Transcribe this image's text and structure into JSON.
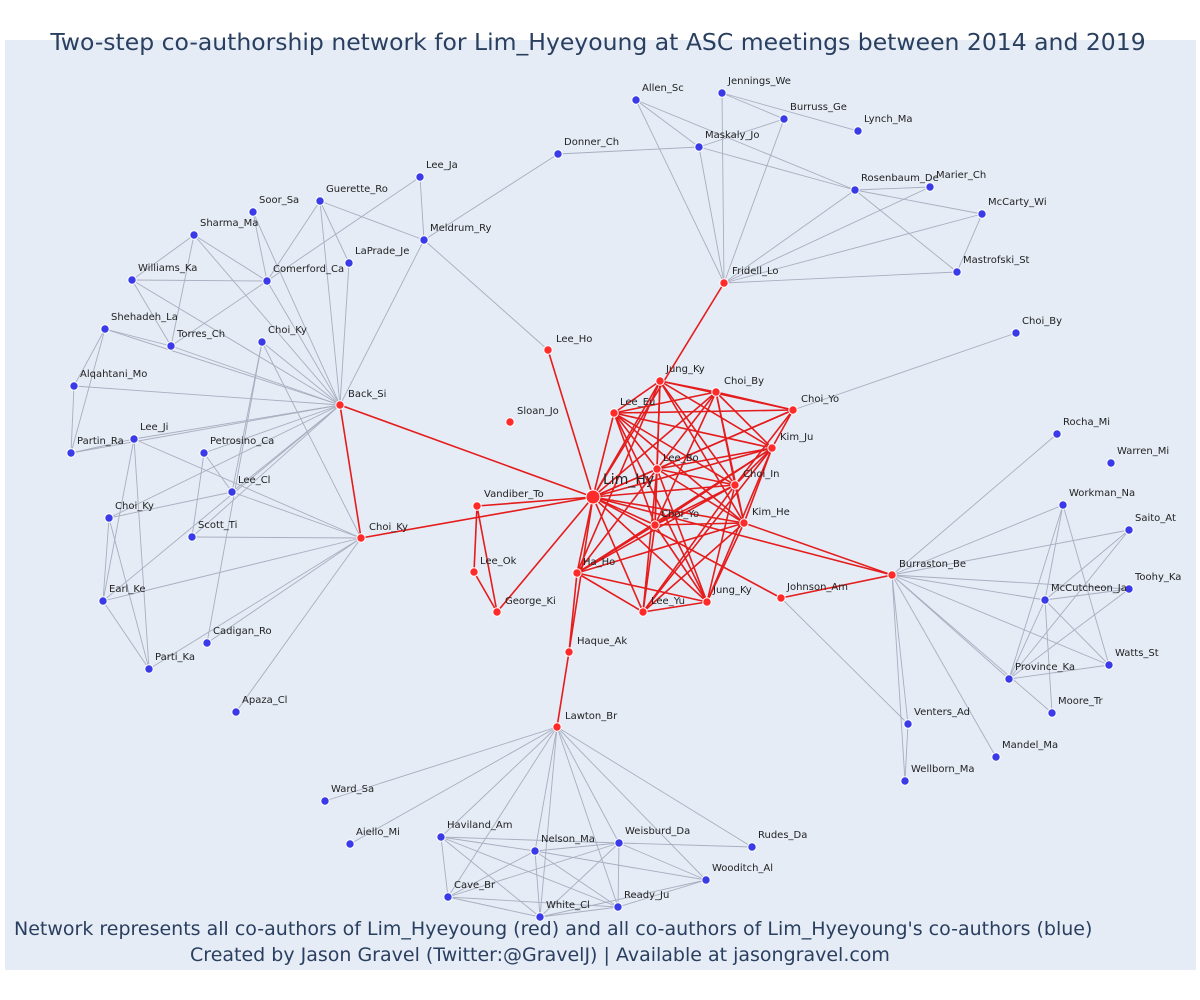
{
  "title": "Two-step co-authorship network for Lim_Hyeyoung at ASC meetings between 2014 and 2019",
  "caption_line1": "Network represents all co-authors of Lim_Hyeyoung (red) and all co-authors of Lim_Hyeyoung's co-authors (blue)",
  "caption_line2": "Created by Jason Gravel (Twitter:@GravelJ) | Available at jasongravel.com",
  "colors": {
    "background": "#e5ecf6",
    "coauthor": "#ff2a2a",
    "second_step": "#3a3ae8",
    "coauthor_edge": "#e51c1c",
    "second_edge": "#a8aebf",
    "text": "#2a3f5f"
  },
  "nodes": [
    {
      "id": "Lim_Hy",
      "label": "Lim_Hy",
      "group": "center"
    },
    {
      "id": "Jung_Ky1",
      "label": "Jung_Ky",
      "group": "coauthor"
    },
    {
      "id": "Choi_By1",
      "label": "Choi_By",
      "group": "coauthor"
    },
    {
      "id": "Choi_Yo",
      "label": "Choi_Yo",
      "group": "coauthor"
    },
    {
      "id": "Lee_Eu",
      "label": "Lee_Eu",
      "group": "coauthor"
    },
    {
      "id": "Kim_Ju",
      "label": "Kim_Ju",
      "group": "coauthor"
    },
    {
      "id": "Lee_Bo",
      "label": "Lee_Bo",
      "group": "coauthor"
    },
    {
      "id": "Choi_In",
      "label": "Choi_In",
      "group": "coauthor"
    },
    {
      "id": "Kim_He",
      "label": "Kim_He",
      "group": "coauthor"
    },
    {
      "id": "Choi_Yo2",
      "label": "Choi_Yo",
      "group": "coauthor"
    },
    {
      "id": "Ha_Ho",
      "label": "Ha_Ho",
      "group": "coauthor"
    },
    {
      "id": "Lee_Yu",
      "label": "Lee_Yu",
      "group": "coauthor"
    },
    {
      "id": "Jung_Ky2",
      "label": "Jung_Ky",
      "group": "coauthor"
    },
    {
      "id": "Johnson_Am",
      "label": "Johnson_Am",
      "group": "coauthor"
    },
    {
      "id": "Haque_Ak",
      "label": "Haque_Ak",
      "group": "coauthor"
    },
    {
      "id": "Lawton_Br",
      "label": "Lawton_Br",
      "group": "coauthor"
    },
    {
      "id": "Vandiber_To",
      "label": "Vandiber_To",
      "group": "coauthor"
    },
    {
      "id": "Lee_Ok",
      "label": "Lee_Ok",
      "group": "coauthor"
    },
    {
      "id": "George_Ki",
      "label": "George_Ki",
      "group": "coauthor"
    },
    {
      "id": "Sloan_Jo",
      "label": "Sloan_Jo",
      "group": "coauthor"
    },
    {
      "id": "Lee_Ho",
      "label": "Lee_Ho",
      "group": "coauthor"
    },
    {
      "id": "Fridell_Lo",
      "label": "Fridell_Lo",
      "group": "coauthor"
    },
    {
      "id": "Back_Si",
      "label": "Back_Si",
      "group": "coauthor"
    },
    {
      "id": "Choi_Ky_r",
      "label": "Choi_Ky",
      "group": "coauthor"
    },
    {
      "id": "Burraston_Be",
      "label": "Burraston_Be",
      "group": "coauthor"
    },
    {
      "id": "Allen_Sc",
      "label": "Allen_Sc",
      "group": "second"
    },
    {
      "id": "Jennings_We",
      "label": "Jennings_We",
      "group": "second"
    },
    {
      "id": "Burruss_Ge",
      "label": "Burruss_Ge",
      "group": "second"
    },
    {
      "id": "Lynch_Ma",
      "label": "Lynch_Ma",
      "group": "second"
    },
    {
      "id": "Donner_Ch",
      "label": "Donner_Ch",
      "group": "second"
    },
    {
      "id": "Maskaly_Jo",
      "label": "Maskaly_Jo",
      "group": "second"
    },
    {
      "id": "Rosenbaum_De",
      "label": "Rosenbaum_De",
      "group": "second"
    },
    {
      "id": "Marier_Ch",
      "label": "Marier_Ch",
      "group": "second"
    },
    {
      "id": "McCarty_Wi",
      "label": "McCarty_Wi",
      "group": "second"
    },
    {
      "id": "Mastrofski_St",
      "label": "Mastrofski_St",
      "group": "second"
    },
    {
      "id": "Lee_Ja",
      "label": "Lee_Ja",
      "group": "second"
    },
    {
      "id": "Guerette_Ro",
      "label": "Guerette_Ro",
      "group": "second"
    },
    {
      "id": "Soor_Sa",
      "label": "Soor_Sa",
      "group": "second"
    },
    {
      "id": "Sharma_Ma",
      "label": "Sharma_Ma",
      "group": "second"
    },
    {
      "id": "Meldrum_Ry",
      "label": "Meldrum_Ry",
      "group": "second"
    },
    {
      "id": "LaPrade_Je",
      "label": "LaPrade_Je",
      "group": "second"
    },
    {
      "id": "Williams_Ka",
      "label": "Williams_Ka",
      "group": "second"
    },
    {
      "id": "Comerford_Ca",
      "label": "Comerford_Ca",
      "group": "second"
    },
    {
      "id": "Shehadeh_La",
      "label": "Shehadeh_La",
      "group": "second"
    },
    {
      "id": "Torres_Ch",
      "label": "Torres_Ch",
      "group": "second"
    },
    {
      "id": "Choi_Ky_b1",
      "label": "Choi_Ky",
      "group": "second"
    },
    {
      "id": "Alqahtani_Mo",
      "label": "Alqahtani_Mo",
      "group": "second"
    },
    {
      "id": "Lee_Ji",
      "label": "Lee_Ji",
      "group": "second"
    },
    {
      "id": "Partin_Ra",
      "label": "Partin_Ra",
      "group": "second"
    },
    {
      "id": "Petrosino_Ca",
      "label": "Petrosino_Ca",
      "group": "second"
    },
    {
      "id": "Lee_Cl",
      "label": "Lee_Cl",
      "group": "second"
    },
    {
      "id": "Choi_Ky_b2",
      "label": "Choi_Ky",
      "group": "second"
    },
    {
      "id": "Scott_Ti",
      "label": "Scott_Ti",
      "group": "second"
    },
    {
      "id": "Earl_Ke",
      "label": "Earl_Ke",
      "group": "second"
    },
    {
      "id": "Cadigan_Ro",
      "label": "Cadigan_Ro",
      "group": "second"
    },
    {
      "id": "Parti_Ka",
      "label": "Parti_Ka",
      "group": "second"
    },
    {
      "id": "Apaza_Cl",
      "label": "Apaza_Cl",
      "group": "second"
    },
    {
      "id": "Choi_By2",
      "label": "Choi_By",
      "group": "second"
    },
    {
      "id": "Rocha_Mi",
      "label": "Rocha_Mi",
      "group": "second"
    },
    {
      "id": "Warren_Mi",
      "label": "Warren_Mi",
      "group": "second"
    },
    {
      "id": "Workman_Na",
      "label": "Workman_Na",
      "group": "second"
    },
    {
      "id": "Saito_At",
      "label": "Saito_At",
      "group": "second"
    },
    {
      "id": "Toohy_Ka",
      "label": "Toohy_Ka",
      "group": "second"
    },
    {
      "id": "McCutcheon_Ja",
      "label": "McCutcheon_Ja",
      "group": "second"
    },
    {
      "id": "Watts_St",
      "label": "Watts_St",
      "group": "second"
    },
    {
      "id": "Province_Ka",
      "label": "Province_Ka",
      "group": "second"
    },
    {
      "id": "Moore_Tr",
      "label": "Moore_Tr",
      "group": "second"
    },
    {
      "id": "Venters_Ad",
      "label": "Venters_Ad",
      "group": "second"
    },
    {
      "id": "Mandel_Ma",
      "label": "Mandel_Ma",
      "group": "second"
    },
    {
      "id": "Wellborn_Ma",
      "label": "Wellborn_Ma",
      "group": "second"
    },
    {
      "id": "Ward_Sa",
      "label": "Ward_Sa",
      "group": "second"
    },
    {
      "id": "Aiello_Mi",
      "label": "Aiello_Mi",
      "group": "second"
    },
    {
      "id": "Haviland_Am",
      "label": "Haviland_Am",
      "group": "second"
    },
    {
      "id": "Nelson_Ma",
      "label": "Nelson_Ma",
      "group": "second"
    },
    {
      "id": "Weisburd_Da",
      "label": "Weisburd_Da",
      "group": "second"
    },
    {
      "id": "Rudes_Da",
      "label": "Rudes_Da",
      "group": "second"
    },
    {
      "id": "Wooditch_Al",
      "label": "Wooditch_Al",
      "group": "second"
    },
    {
      "id": "Cave_Br",
      "label": "Cave_Br",
      "group": "second"
    },
    {
      "id": "Ready_Ju",
      "label": "Ready_Ju",
      "group": "second"
    },
    {
      "id": "White_Cl",
      "label": "White_Cl",
      "group": "second"
    }
  ],
  "edges": [
    [
      "Lim_Hy",
      "Jung_Ky1"
    ],
    [
      "Lim_Hy",
      "Choi_By1"
    ],
    [
      "Lim_Hy",
      "Choi_Yo"
    ],
    [
      "Lim_Hy",
      "Lee_Eu"
    ],
    [
      "Lim_Hy",
      "Kim_Ju"
    ],
    [
      "Lim_Hy",
      "Lee_Bo"
    ],
    [
      "Lim_Hy",
      "Choi_In"
    ],
    [
      "Lim_Hy",
      "Kim_He"
    ],
    [
      "Lim_Hy",
      "Choi_Yo2"
    ],
    [
      "Lim_Hy",
      "Ha_Ho"
    ],
    [
      "Lim_Hy",
      "Lee_Yu"
    ],
    [
      "Lim_Hy",
      "Jung_Ky2"
    ],
    [
      "Lim_Hy",
      "Johnson_Am"
    ],
    [
      "Lim_Hy",
      "Haque_Ak"
    ],
    [
      "Lim_Hy",
      "Vandiber_To"
    ],
    [
      "Lim_Hy",
      "George_Ki"
    ],
    [
      "Lim_Hy",
      "Lee_Ho"
    ],
    [
      "Lim_Hy",
      "Back_Si"
    ],
    [
      "Lim_Hy",
      "Choi_Ky_r"
    ],
    [
      "Lim_Hy",
      "Burraston_Be"
    ],
    [
      "Lim_Hy",
      "Fridell_Lo"
    ],
    [
      "Jung_Ky1",
      "Choi_By1"
    ],
    [
      "Jung_Ky1",
      "Lee_Eu"
    ],
    [
      "Jung_Ky1",
      "Kim_Ju"
    ],
    [
      "Jung_Ky1",
      "Lee_Bo"
    ],
    [
      "Jung_Ky1",
      "Choi_In"
    ],
    [
      "Jung_Ky1",
      "Kim_He"
    ],
    [
      "Jung_Ky1",
      "Choi_Yo2"
    ],
    [
      "Jung_Ky1",
      "Choi_Yo"
    ],
    [
      "Jung_Ky1",
      "Ha_Ho"
    ],
    [
      "Choi_By1",
      "Choi_Yo"
    ],
    [
      "Choi_By1",
      "Lee_Eu"
    ],
    [
      "Choi_By1",
      "Kim_Ju"
    ],
    [
      "Choi_By1",
      "Lee_Bo"
    ],
    [
      "Choi_By1",
      "Choi_In"
    ],
    [
      "Choi_By1",
      "Kim_He"
    ],
    [
      "Choi_By1",
      "Choi_Yo2"
    ],
    [
      "Choi_Yo",
      "Lee_Eu"
    ],
    [
      "Choi_Yo",
      "Kim_Ju"
    ],
    [
      "Choi_Yo",
      "Lee_Bo"
    ],
    [
      "Choi_Yo",
      "Choi_In"
    ],
    [
      "Lee_Eu",
      "Kim_Ju"
    ],
    [
      "Lee_Eu",
      "Lee_Bo"
    ],
    [
      "Lee_Eu",
      "Choi_In"
    ],
    [
      "Lee_Eu",
      "Kim_He"
    ],
    [
      "Lee_Eu",
      "Choi_Yo2"
    ],
    [
      "Lee_Eu",
      "Jung_Ky2"
    ],
    [
      "Kim_Ju",
      "Lee_Bo"
    ],
    [
      "Kim_Ju",
      "Choi_In"
    ],
    [
      "Kim_Ju",
      "Kim_He"
    ],
    [
      "Kim_Ju",
      "Choi_Yo2"
    ],
    [
      "Kim_Ju",
      "Ha_Ho"
    ],
    [
      "Kim_Ju",
      "Lee_Yu"
    ],
    [
      "Kim_Ju",
      "Jung_Ky2"
    ],
    [
      "Lee_Bo",
      "Choi_In"
    ],
    [
      "Lee_Bo",
      "Kim_He"
    ],
    [
      "Lee_Bo",
      "Choi_Yo2"
    ],
    [
      "Lee_Bo",
      "Ha_Ho"
    ],
    [
      "Lee_Bo",
      "Lee_Yu"
    ],
    [
      "Lee_Bo",
      "Jung_Ky2"
    ],
    [
      "Choi_In",
      "Kim_He"
    ],
    [
      "Choi_In",
      "Choi_Yo2"
    ],
    [
      "Choi_In",
      "Ha_Ho"
    ],
    [
      "Choi_In",
      "Lee_Yu"
    ],
    [
      "Choi_In",
      "Jung_Ky2"
    ],
    [
      "Kim_He",
      "Choi_Yo2"
    ],
    [
      "Kim_He",
      "Ha_Ho"
    ],
    [
      "Kim_He",
      "Lee_Yu"
    ],
    [
      "Kim_He",
      "Jung_Ky2"
    ],
    [
      "Kim_He",
      "Burraston_Be"
    ],
    [
      "Choi_Yo2",
      "Ha_Ho"
    ],
    [
      "Choi_Yo2",
      "Lee_Yu"
    ],
    [
      "Choi_Yo2",
      "Jung_Ky2"
    ],
    [
      "Ha_Ho",
      "Lee_Yu"
    ],
    [
      "Ha_Ho",
      "Jung_Ky2"
    ],
    [
      "Ha_Ho",
      "Haque_Ak"
    ],
    [
      "Lee_Yu",
      "Jung_Ky2"
    ],
    [
      "Johnson_Am",
      "Burraston_Be"
    ],
    [
      "Haque_Ak",
      "Lawton_Br"
    ],
    [
      "Vandiber_To",
      "Lee_Ok"
    ],
    [
      "Vandiber_To",
      "George_Ki"
    ],
    [
      "Lee_Ok",
      "George_Ki"
    ],
    [
      "Back_Si",
      "Choi_Ky_r"
    ],
    [
      "Fridell_Lo",
      "Allen_Sc"
    ],
    [
      "Fridell_Lo",
      "Jennings_We"
    ],
    [
      "Fridell_Lo",
      "Burruss_Ge"
    ],
    [
      "Fridell_Lo",
      "Maskaly_Jo"
    ],
    [
      "Fridell_Lo",
      "Rosenbaum_De"
    ],
    [
      "Fridell_Lo",
      "Marier_Ch"
    ],
    [
      "Fridell_Lo",
      "McCarty_Wi"
    ],
    [
      "Fridell_Lo",
      "Mastrofski_St"
    ],
    [
      "Allen_Sc",
      "Maskaly_Jo"
    ],
    [
      "Allen_Sc",
      "Rosenbaum_De"
    ],
    [
      "Jennings_We",
      "Burruss_Ge"
    ],
    [
      "Jennings_We",
      "Lynch_Ma"
    ],
    [
      "Burruss_Ge",
      "Maskaly_Jo"
    ],
    [
      "Maskaly_Jo",
      "Donner_Ch"
    ],
    [
      "Maskaly_Jo",
      "Rosenbaum_De"
    ],
    [
      "Rosenbaum_De",
      "McCarty_Wi"
    ],
    [
      "Rosenbaum_De",
      "Mastrofski_St"
    ],
    [
      "McCarty_Wi",
      "Mastrofski_St"
    ],
    [
      "Marier_Ch",
      "Rosenbaum_De"
    ],
    [
      "Donner_Ch",
      "Meldrum_Ry"
    ],
    [
      "Meldrum_Ry",
      "Lee_Ho"
    ],
    [
      "Meldrum_Ry",
      "Back_Si"
    ],
    [
      "Meldrum_Ry",
      "Guerette_Ro"
    ],
    [
      "Lee_Ja",
      "Meldrum_Ry"
    ],
    [
      "Lee_Ja",
      "Comerford_Ca"
    ],
    [
      "Back_Si",
      "Guerette_Ro"
    ],
    [
      "Back_Si",
      "Soor_Sa"
    ],
    [
      "Back_Si",
      "Sharma_Ma"
    ],
    [
      "Back_Si",
      "LaPrade_Je"
    ],
    [
      "Back_Si",
      "Williams_Ka"
    ],
    [
      "Back_Si",
      "Comerford_Ca"
    ],
    [
      "Back_Si",
      "Shehadeh_La"
    ],
    [
      "Back_Si",
      "Torres_Ch"
    ],
    [
      "Back_Si",
      "Choi_Ky_b1"
    ],
    [
      "Back_Si",
      "Alqahtani_Mo"
    ],
    [
      "Back_Si",
      "Lee_Ji"
    ],
    [
      "Back_Si",
      "Partin_Ra"
    ],
    [
      "Back_Si",
      "Petrosino_Ca"
    ],
    [
      "Back_Si",
      "Lee_Cl"
    ],
    [
      "Back_Si",
      "Choi_Ky_b2"
    ],
    [
      "Back_Si",
      "Scott_Ti"
    ],
    [
      "Back_Si",
      "Earl_Ke"
    ],
    [
      "Guerette_Ro",
      "Comerford_Ca"
    ],
    [
      "Guerette_Ro",
      "LaPrade_Je"
    ],
    [
      "Soor_Sa",
      "Comerford_Ca"
    ],
    [
      "Sharma_Ma",
      "Comerford_Ca"
    ],
    [
      "Sharma_Ma",
      "Williams_Ka"
    ],
    [
      "Sharma_Ma",
      "Torres_Ch"
    ],
    [
      "Williams_Ka",
      "Comerford_Ca"
    ],
    [
      "Williams_Ka",
      "Torres_Ch"
    ],
    [
      "Comerford_Ca",
      "Torres_Ch"
    ],
    [
      "Shehadeh_La",
      "Alqahtani_Mo"
    ],
    [
      "Shehadeh_La",
      "Partin_Ra"
    ],
    [
      "Shehadeh_La",
      "Torres_Ch"
    ],
    [
      "Alqahtani_Mo",
      "Partin_Ra"
    ],
    [
      "Lee_Ji",
      "Partin_Ra"
    ],
    [
      "Lee_Ji",
      "Earl_Ke"
    ],
    [
      "Lee_Ji",
      "Parti_Ka"
    ],
    [
      "Lee_Ji",
      "Choi_Ky_r"
    ],
    [
      "Choi_Ky_b1",
      "Cadigan_Ro"
    ],
    [
      "Choi_Ky_b1",
      "Lee_Cl"
    ],
    [
      "Petrosino_Ca",
      "Scott_Ti"
    ],
    [
      "Petrosino_Ca",
      "Lee_Cl"
    ],
    [
      "Lee_Cl",
      "Choi_Ky_r"
    ],
    [
      "Lee_Cl",
      "Choi_Ky_b2"
    ],
    [
      "Choi_Ky_b2",
      "Earl_Ke"
    ],
    [
      "Choi_Ky_b2",
      "Parti_Ka"
    ],
    [
      "Earl_Ke",
      "Parti_Ka"
    ],
    [
      "Earl_Ke",
      "Choi_Ky_r"
    ],
    [
      "Scott_Ti",
      "Choi_Ky_r"
    ],
    [
      "Cadigan_Ro",
      "Choi_Ky_r"
    ],
    [
      "Apaza_Cl",
      "Choi_Ky_r"
    ],
    [
      "Choi_Ky_r",
      "Parti_Ka"
    ],
    [
      "Choi_Ky_b1",
      "Choi_Ky_r"
    ],
    [
      "Choi_Yo",
      "Choi_By2"
    ],
    [
      "Burraston_Be",
      "Rocha_Mi"
    ],
    [
      "Burraston_Be",
      "Workman_Na"
    ],
    [
      "Burraston_Be",
      "Saito_At"
    ],
    [
      "Burraston_Be",
      "Toohy_Ka"
    ],
    [
      "Burraston_Be",
      "McCutcheon_Ja"
    ],
    [
      "Burraston_Be",
      "Watts_St"
    ],
    [
      "Burraston_Be",
      "Province_Ka"
    ],
    [
      "Burraston_Be",
      "Moore_Tr"
    ],
    [
      "Burraston_Be",
      "Venters_Ad"
    ],
    [
      "Burraston_Be",
      "Mandel_Ma"
    ],
    [
      "Burraston_Be",
      "Wellborn_Ma"
    ],
    [
      "Workman_Na",
      "McCutcheon_Ja"
    ],
    [
      "Workman_Na",
      "Watts_St"
    ],
    [
      "Workman_Na",
      "Province_Ka"
    ],
    [
      "Saito_At",
      "McCutcheon_Ja"
    ],
    [
      "Saito_At",
      "Province_Ka"
    ],
    [
      "Toohy_Ka",
      "McCutcheon_Ja"
    ],
    [
      "Toohy_Ka",
      "Province_Ka"
    ],
    [
      "McCutcheon_Ja",
      "Watts_St"
    ],
    [
      "McCutcheon_Ja",
      "Province_Ka"
    ],
    [
      "McCutcheon_Ja",
      "Moore_Tr"
    ],
    [
      "Province_Ka",
      "Watts_St"
    ],
    [
      "Venters_Ad",
      "Johnson_Am"
    ],
    [
      "Venters_Ad",
      "Wellborn_Ma"
    ],
    [
      "Lawton_Br",
      "Ward_Sa"
    ],
    [
      "Lawton_Br",
      "Aiello_Mi"
    ],
    [
      "Lawton_Br",
      "Haviland_Am"
    ],
    [
      "Lawton_Br",
      "Nelson_Ma"
    ],
    [
      "Lawton_Br",
      "Weisburd_Da"
    ],
    [
      "Lawton_Br",
      "Rudes_Da"
    ],
    [
      "Lawton_Br",
      "Wooditch_Al"
    ],
    [
      "Lawton_Br",
      "Cave_Br"
    ],
    [
      "Lawton_Br",
      "Ready_Ju"
    ],
    [
      "Lawton_Br",
      "White_Cl"
    ],
    [
      "Haviland_Am",
      "Nelson_Ma"
    ],
    [
      "Haviland_Am",
      "Weisburd_Da"
    ],
    [
      "Haviland_Am",
      "Cave_Br"
    ],
    [
      "Haviland_Am",
      "Ready_Ju"
    ],
    [
      "Haviland_Am",
      "White_Cl"
    ],
    [
      "Nelson_Ma",
      "Weisburd_Da"
    ],
    [
      "Nelson_Ma",
      "Cave_Br"
    ],
    [
      "Nelson_Ma",
      "Ready_Ju"
    ],
    [
      "Nelson_Ma",
      "White_Cl"
    ],
    [
      "Nelson_Ma",
      "Wooditch_Al"
    ],
    [
      "Weisburd_Da",
      "Rudes_Da"
    ],
    [
      "Weisburd_Da",
      "Wooditch_Al"
    ],
    [
      "Weisburd_Da",
      "Cave_Br"
    ],
    [
      "Weisburd_Da",
      "Ready_Ju"
    ],
    [
      "Weisburd_Da",
      "White_Cl"
    ],
    [
      "Cave_Br",
      "Ready_Ju"
    ],
    [
      "Cave_Br",
      "White_Cl"
    ],
    [
      "Ready_Ju",
      "White_Cl"
    ],
    [
      "Ready_Ju",
      "Wooditch_Al"
    ],
    [
      "White_Cl",
      "Wooditch_Al"
    ]
  ]
}
